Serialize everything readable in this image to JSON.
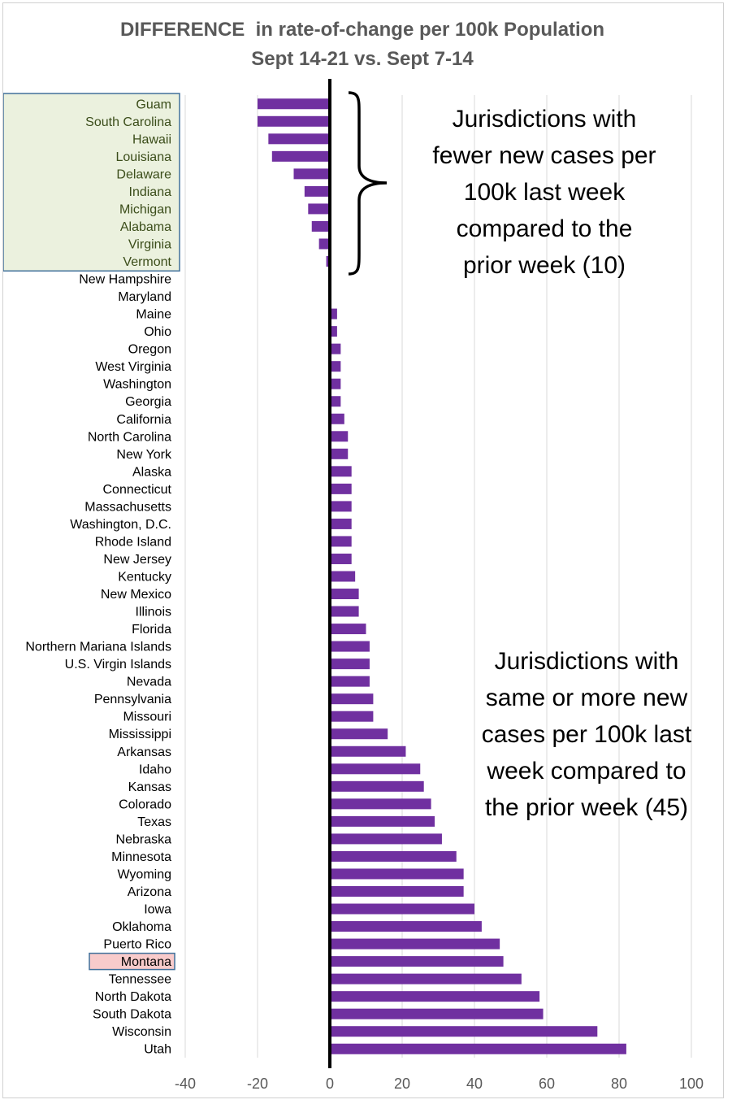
{
  "chart_data": {
    "type": "bar",
    "orientation": "horizontal",
    "title": "DIFFERENCE  in rate-of-change per 100k Population",
    "subtitle": "Sept 14-21 vs. Sept 7-14",
    "categories": [
      "Guam",
      "South Carolina",
      "Hawaii",
      "Louisiana",
      "Delaware",
      "Indiana",
      "Michigan",
      "Alabama",
      "Virginia",
      "Vermont",
      "New Hampshire",
      "Maryland",
      "Maine",
      "Ohio",
      "Oregon",
      "West Virginia",
      "Washington",
      "Georgia",
      "California",
      "North Carolina",
      "New York",
      "Alaska",
      "Connecticut",
      "Massachusetts",
      "Washington, D.C.",
      "Rhode Island",
      "New Jersey",
      "Kentucky",
      "New Mexico",
      "Illinois",
      "Florida",
      "Northern Mariana Islands",
      "U.S. Virgin Islands",
      "Nevada",
      "Pennsylvania",
      "Missouri",
      "Mississippi",
      "Arkansas",
      "Idaho",
      "Kansas",
      "Colorado",
      "Texas",
      "Nebraska",
      "Minnesota",
      "Wyoming",
      "Arizona",
      "Iowa",
      "Oklahoma",
      "Puerto Rico",
      "Montana",
      "Tennessee",
      "North Dakota",
      "South Dakota",
      "Wisconsin",
      "Utah"
    ],
    "values": [
      -20,
      -20,
      -17,
      -16,
      -10,
      -7,
      -6,
      -5,
      -3,
      -1,
      0,
      0,
      2,
      2,
      3,
      3,
      3,
      3,
      4,
      5,
      5,
      6,
      6,
      6,
      6,
      6,
      6,
      7,
      8,
      8,
      10,
      11,
      11,
      11,
      12,
      12,
      16,
      21,
      25,
      26,
      28,
      29,
      31,
      35,
      37,
      37,
      40,
      42,
      47,
      48,
      53,
      58,
      59,
      74,
      82
    ],
    "xlim": [
      -40,
      100
    ],
    "xticks": [
      "-40",
      "-20",
      "0",
      "20",
      "40",
      "60",
      "80",
      "100"
    ],
    "grid": true,
    "bar_color": "#7030a0",
    "highlighted_group": [
      "Guam",
      "South Carolina",
      "Hawaii",
      "Louisiana",
      "Delaware",
      "Indiana",
      "Michigan",
      "Alabama",
      "Virginia",
      "Vermont"
    ],
    "highlighted_group_color": "#ebf1de",
    "highlighted_group_border": "#41719c",
    "highlighted_single": "Montana",
    "highlighted_single_color": "#f8cbcb",
    "annotations": [
      {
        "lines": [
          "Jurisdictions with",
          "fewer new cases per",
          "100k last week",
          "compared to the",
          "prior week (10)"
        ]
      },
      {
        "lines": [
          "Jurisdictions with",
          "same or more new",
          "cases per 100k last",
          "week compared to",
          "the prior week (45)"
        ]
      }
    ]
  }
}
